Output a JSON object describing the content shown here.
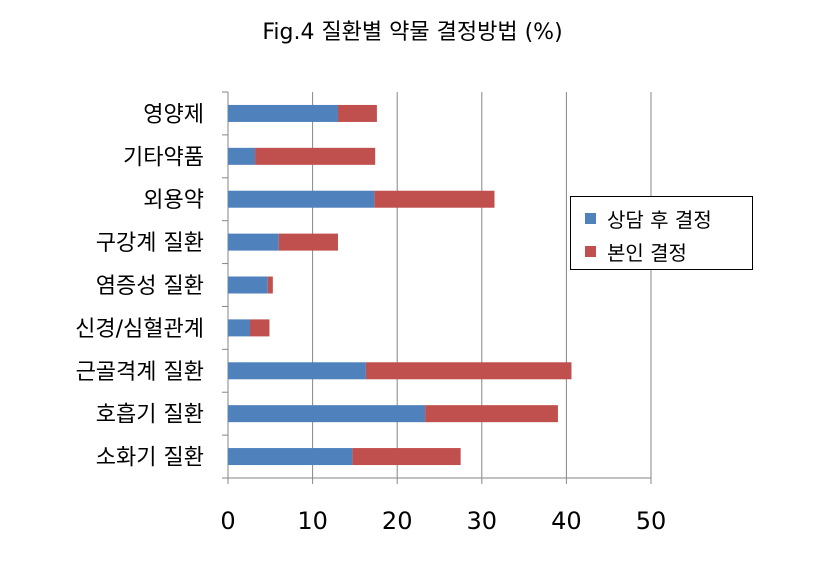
{
  "chart_data": {
    "type": "bar",
    "orientation": "horizontal",
    "stacked": true,
    "title": "Fig.4 질환별 약물 결정방법 (%)",
    "categories": [
      "영양제",
      "기타약품",
      "외용약",
      "구강계 질환",
      "염증성 질환",
      "신경/심혈관계",
      "근골격계 질환",
      "호흡기 질환",
      "소화기 질환"
    ],
    "series": [
      {
        "name": "상담 후 결정",
        "color": "#4F81BD",
        "values": [
          13.0,
          3.2,
          17.3,
          6.0,
          4.7,
          2.6,
          16.3,
          23.3,
          14.7
        ]
      },
      {
        "name": "본인 결정",
        "color": "#C0504D",
        "values": [
          4.6,
          14.2,
          14.2,
          7.0,
          0.6,
          2.3,
          24.3,
          15.7,
          12.8
        ]
      }
    ],
    "xlim": [
      0,
      50
    ],
    "x_ticks": [
      "0",
      "10",
      "20",
      "30",
      "40",
      "50"
    ],
    "xlabel": "",
    "ylabel": "",
    "grid": "vertical",
    "legend_position": "right"
  }
}
